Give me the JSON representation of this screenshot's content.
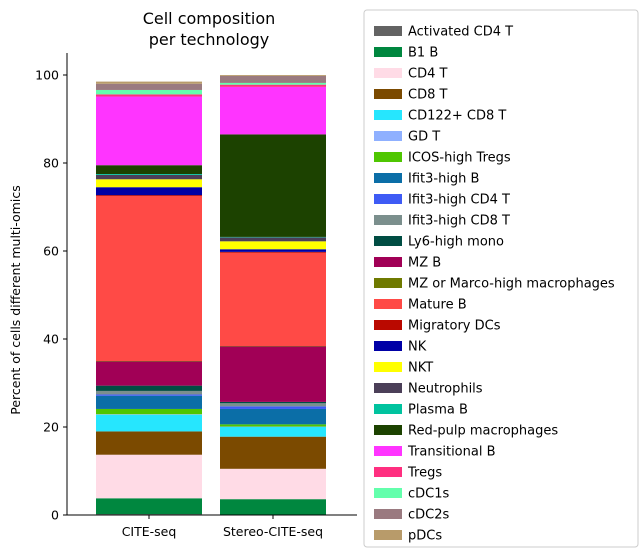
{
  "chart_data": {
    "type": "bar",
    "stacked": true,
    "title": "Cell composition\nper technology",
    "xlabel": "",
    "ylabel": "Percent of cells different multi-omics",
    "ylim": [
      0,
      105
    ],
    "yticks": [
      0,
      20,
      40,
      60,
      80,
      100
    ],
    "categories": [
      "CITE-seq",
      "Stereo-CITE-seq"
    ],
    "grid": false,
    "legend_position": "right",
    "series": [
      {
        "name": "Activated CD4 T",
        "color": "#636363",
        "values": [
          0.2,
          0.0
        ]
      },
      {
        "name": "B1 B",
        "color": "#00873f",
        "values": [
          3.6,
          3.6
        ]
      },
      {
        "name": "CD4 T",
        "color": "#ffdbe6",
        "values": [
          9.9,
          6.9
        ]
      },
      {
        "name": "CD8 T",
        "color": "#7b4a00",
        "values": [
          5.3,
          7.3
        ]
      },
      {
        "name": "CD122+ CD8 T",
        "color": "#26e6fe",
        "values": [
          3.8,
          2.2
        ]
      },
      {
        "name": "GD T",
        "color": "#8fb0ff",
        "values": [
          0.1,
          0.1
        ]
      },
      {
        "name": "ICOS-high Tregs",
        "color": "#4fc601",
        "values": [
          1.2,
          0.5
        ]
      },
      {
        "name": "Ifit3-high B",
        "color": "#0b6ea7",
        "values": [
          3.0,
          3.5
        ]
      },
      {
        "name": "Ifit3-high CD4 T",
        "color": "#3e5bf5",
        "values": [
          0.3,
          0.6
        ]
      },
      {
        "name": "Ifit3-high CD8 T",
        "color": "#7b8f8d",
        "values": [
          0.8,
          0.7
        ]
      },
      {
        "name": "Ly6-high mono",
        "color": "#004d43",
        "values": [
          1.2,
          0.3
        ]
      },
      {
        "name": "MZ B",
        "color": "#a10056",
        "values": [
          5.5,
          12.6
        ]
      },
      {
        "name": "MZ or Marco-high macrophages",
        "color": "#6f7a00",
        "values": [
          0.1,
          0.1
        ]
      },
      {
        "name": "Mature B",
        "color": "#ff4a46",
        "values": [
          37.5,
          21.2
        ]
      },
      {
        "name": "Migratory DCs",
        "color": "#ba0900",
        "values": [
          0.2,
          0.2
        ]
      },
      {
        "name": "NK",
        "color": "#0000a6",
        "values": [
          1.8,
          0.6
        ]
      },
      {
        "name": "NKT",
        "color": "#ffff00",
        "values": [
          1.8,
          1.8
        ]
      },
      {
        "name": "Neutrophils",
        "color": "#4b3f58",
        "values": [
          1.0,
          0.9
        ]
      },
      {
        "name": "Plasma B",
        "color": "#00c39f",
        "values": [
          0.2,
          0.1
        ]
      },
      {
        "name": "Red-pulp macrophages",
        "color": "#1c4200",
        "values": [
          2.0,
          23.3
        ]
      },
      {
        "name": "Transitional B",
        "color": "#ff34ff",
        "values": [
          15.6,
          10.8
        ]
      },
      {
        "name": "Tregs",
        "color": "#ff2f80",
        "values": [
          0.5,
          0.5
        ]
      },
      {
        "name": "cDC1s",
        "color": "#63ffac",
        "values": [
          1.0,
          0.4
        ]
      },
      {
        "name": "cDC2s",
        "color": "#9a7a80",
        "values": [
          1.4,
          1.6
        ]
      },
      {
        "name": "pDCs",
        "color": "#b89b6a",
        "values": [
          0.5,
          0.2
        ]
      }
    ]
  }
}
